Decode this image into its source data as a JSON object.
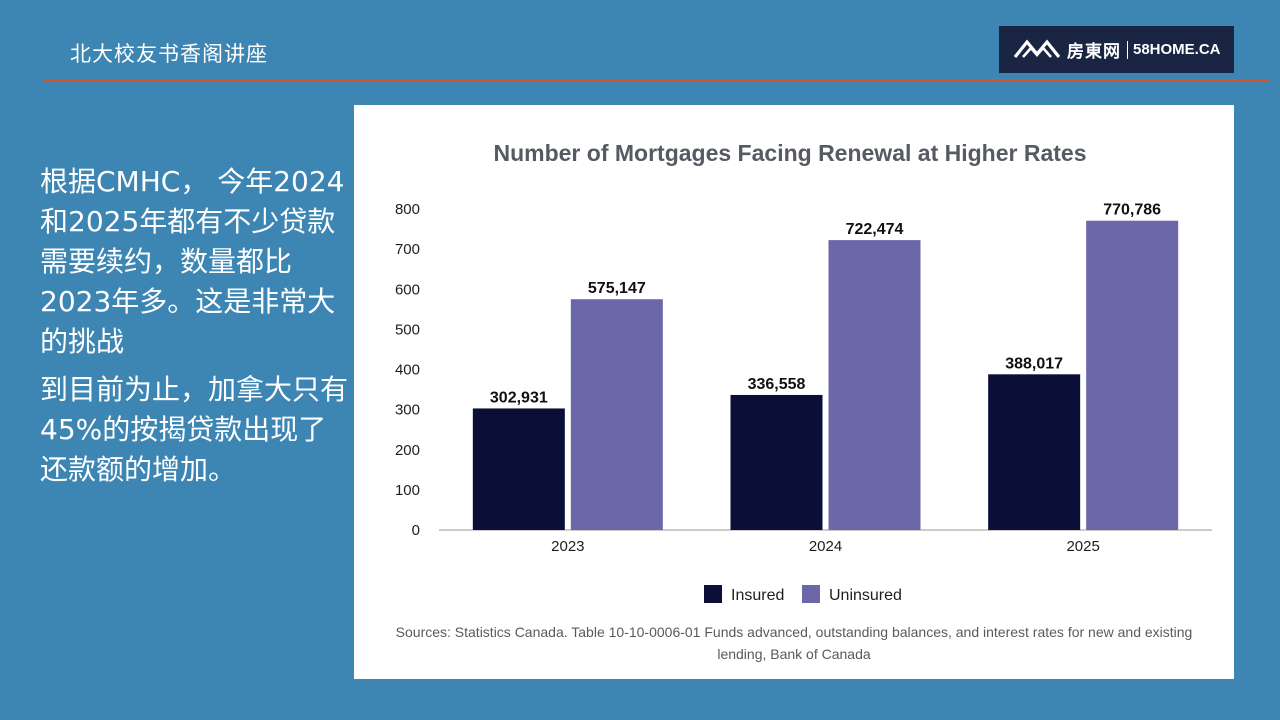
{
  "header": {
    "title": "北大校友书香阁讲座"
  },
  "logo": {
    "name_cn": "房東网",
    "name_en": "58HOME.CA"
  },
  "left_text": {
    "paragraph1": "根据CMHC， 今年2024 和2025年都有不少贷款需要续约，数量都比2023年多。这是非常大的挑战",
    "paragraph2": "到目前为止，加拿大只有45%的按揭贷款出现了还款额的增加。"
  },
  "source_note": "Sources: Statistics Canada. Table 10-10-0006-01 Funds advanced, outstanding balances, and interest rates for new and existing lending, Bank of Canada",
  "colors": {
    "background": "#3d86b4",
    "accent_rule": "#d4542e",
    "insured": "#0b0f37",
    "uninsured": "#6b67a9",
    "logo_bg": "#1a2443"
  },
  "chart_data": {
    "type": "bar",
    "title": "Number of Mortgages Facing Renewal at Higher Rates",
    "xlabel": "",
    "ylabel": "",
    "categories": [
      "2023",
      "2024",
      "2025"
    ],
    "series": [
      {
        "name": "Insured",
        "values": [
          302931,
          336558,
          388017
        ],
        "labels": [
          "302,931",
          "336,558",
          "388,017"
        ],
        "color": "#0b0f37"
      },
      {
        "name": "Uninsured",
        "values": [
          575147,
          722474,
          770786
        ],
        "labels": [
          "575,147",
          "722,474",
          "770,786"
        ],
        "color": "#6b67a9"
      }
    ],
    "yticks": [
      "0",
      "100",
      "200",
      "300",
      "400",
      "500",
      "600",
      "700",
      "800"
    ],
    "ylim": [
      0,
      800000
    ],
    "grid": false,
    "legend": "bottom-center"
  }
}
